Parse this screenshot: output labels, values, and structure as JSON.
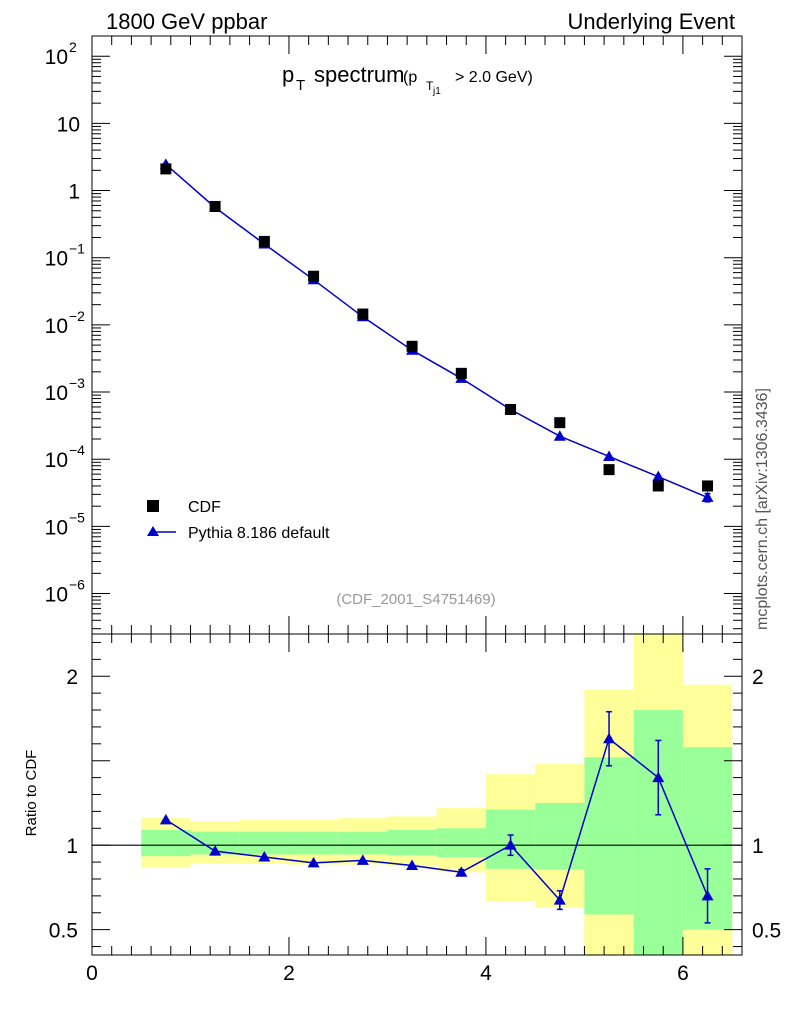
{
  "header": {
    "left": "1800 GeV ppbar",
    "right": "Underlying Event"
  },
  "side_label": "mcplots.cern.ch [arXiv:1306.3436]",
  "analysis_id": "(CDF_2001_S4751469)",
  "colors": {
    "mc": "#0000cc",
    "data": "#000000",
    "band_inner": "#99ff99",
    "band_outer": "#ffff99"
  },
  "chart_data": [
    {
      "type": "scatter",
      "name": "main",
      "title": "p_T spectrum (p_Tj1 > 2.0 GeV)",
      "yscale": "log",
      "xlim": [
        0,
        6.6
      ],
      "ylim": [
        2.5e-07,
        200
      ],
      "y_ticks": [
        {
          "value": 1e-06,
          "label_base": "10",
          "label_exp": "−6"
        },
        {
          "value": 1e-05,
          "label_base": "10",
          "label_exp": "−5"
        },
        {
          "value": 0.0001,
          "label_base": "10",
          "label_exp": "−4"
        },
        {
          "value": 0.001,
          "label_base": "10",
          "label_exp": "−3"
        },
        {
          "value": 0.01,
          "label_base": "10",
          "label_exp": "−2"
        },
        {
          "value": 0.1,
          "label_base": "10",
          "label_exp": "−1"
        },
        {
          "value": 1,
          "label_base": "1",
          "label_exp": ""
        },
        {
          "value": 10,
          "label_base": "10",
          "label_exp": ""
        },
        {
          "value": 100,
          "label_base": "10",
          "label_exp": "2"
        }
      ],
      "legend_position": "bottom-left",
      "series": [
        {
          "name": "CDF",
          "marker": "square",
          "x": [
            0.75,
            1.25,
            1.75,
            2.25,
            2.75,
            3.25,
            3.75,
            4.25,
            4.75,
            5.25,
            5.75,
            6.25
          ],
          "y": [
            2.1,
            0.58,
            0.175,
            0.053,
            0.0145,
            0.0048,
            0.0019,
            0.00055,
            0.00035,
            7e-05,
            4e-05,
            4e-05
          ]
        },
        {
          "name": "Pythia 8.186 default",
          "marker": "triangle",
          "x": [
            0.75,
            1.25,
            1.75,
            2.25,
            2.75,
            3.25,
            3.75,
            4.25,
            4.75,
            5.25,
            5.75,
            6.25
          ],
          "y": [
            2.45,
            0.56,
            0.16,
            0.047,
            0.0132,
            0.0042,
            0.0016,
            0.00055,
            0.00022,
            0.00011,
            5.5e-05,
            2.7e-05
          ],
          "yerr_rel": [
            0,
            0,
            0,
            0,
            0,
            0,
            0,
            0,
            0,
            0,
            0,
            0.14
          ]
        }
      ]
    },
    {
      "type": "line",
      "name": "ratio",
      "ylabel": "Ratio to CDF",
      "xlim": [
        0,
        6.6
      ],
      "ylim": [
        0.35,
        2.25
      ],
      "x_ticks": [
        0,
        2,
        4,
        6
      ],
      "y_ticks": [
        0.5,
        1,
        2
      ],
      "reference_line": 1,
      "bands": {
        "edges": [
          0.5,
          1.0,
          1.5,
          2.0,
          2.5,
          3.0,
          3.5,
          4.0,
          4.5,
          5.0,
          5.5,
          6.0,
          6.5
        ],
        "inner_lo": [
          0.935,
          0.945,
          0.945,
          0.945,
          0.945,
          0.94,
          0.93,
          0.86,
          0.855,
          0.35,
          0.35,
          0.35
        ],
        "inner_hi": [
          1.09,
          1.08,
          1.08,
          1.08,
          1.08,
          1.09,
          1.1,
          1.21,
          1.25,
          1.52,
          1.8,
          1.58
        ],
        "outer_lo": [
          0.87,
          0.89,
          0.89,
          0.885,
          0.885,
          0.875,
          0.84,
          0.67,
          0.63,
          0.35,
          0.35,
          0.35
        ],
        "outer_hi": [
          1.16,
          1.14,
          1.15,
          1.15,
          1.16,
          1.17,
          1.22,
          1.42,
          1.48,
          1.92,
          2.25,
          1.95
        ],
        "outer_lo_extra": [
          null,
          null,
          null,
          null,
          null,
          null,
          null,
          null,
          null,
          0.59,
          null,
          0.5
        ]
      },
      "series": [
        {
          "name": "Pythia 8.186 default",
          "x": [
            0.75,
            1.25,
            1.75,
            2.25,
            2.75,
            3.25,
            3.75,
            4.25,
            4.75,
            5.25,
            5.75,
            6.25
          ],
          "y": [
            1.15,
            0.965,
            0.93,
            0.895,
            0.91,
            0.88,
            0.84,
            1.0,
            0.675,
            1.63,
            1.4,
            0.7
          ],
          "err": [
            0,
            0,
            0,
            0,
            0,
            0,
            0.015,
            0.06,
            0.055,
            0.16,
            0.22,
            0.16
          ]
        }
      ]
    }
  ]
}
